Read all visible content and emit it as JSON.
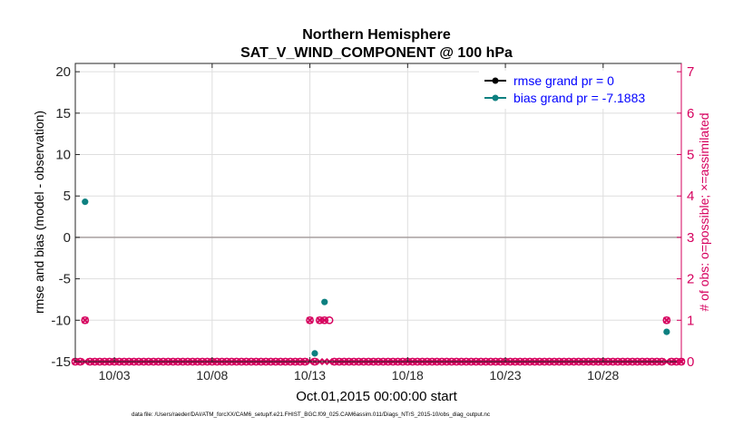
{
  "chart_data": {
    "type": "scatter",
    "title": "Northern Hemisphere",
    "subtitle": "SAT_V_WIND_COMPONENT @ 100 hPa",
    "xlabel": "Oct.01,2015 00:00:00 start",
    "ylabel_left": "rmse and bias (model - observation)",
    "ylabel_right": "# of obs: o=possible; ×=assimilated",
    "footnote": "data file: /Users/raeder/DAI/ATM_forcXX/CAM6_setup/f.e21.FHIST_BGC.f09_025.CAM6assim.011/Diags_NTrS_2015-10/obs_diag_output.nc",
    "xlim": [
      1.0,
      32.0
    ],
    "ylim_left": [
      -15,
      21
    ],
    "ylim_right": [
      0,
      7.2
    ],
    "left_ticks": [
      -15,
      -10,
      -5,
      0,
      5,
      10,
      15,
      20
    ],
    "right_ticks": [
      0,
      1,
      2,
      3,
      4,
      5,
      6,
      7
    ],
    "x_ticks": [
      {
        "x": 3,
        "label": "10/03"
      },
      {
        "x": 8,
        "label": "10/08"
      },
      {
        "x": 13,
        "label": "10/13"
      },
      {
        "x": 18,
        "label": "10/18"
      },
      {
        "x": 23,
        "label": "10/23"
      },
      {
        "x": 28,
        "label": "10/28"
      }
    ],
    "zero_line": 0,
    "legend_position": "top-right",
    "series": [
      {
        "name": "rmse grand pr = 0",
        "color": "#000000",
        "points": []
      },
      {
        "name": "bias grand pr = -7.1883",
        "color": "#0d8080",
        "points": [
          [
            1.5,
            4.3
          ],
          [
            13.25,
            -14.0
          ],
          [
            13.75,
            -7.8
          ],
          [
            31.25,
            -11.4
          ]
        ]
      }
    ],
    "obs_count": {
      "color": "#d6005e",
      "possible": [
        [
          1.5,
          1
        ],
        [
          13.0,
          1
        ],
        [
          13.5,
          1
        ],
        [
          13.75,
          1
        ],
        [
          14.0,
          1
        ],
        [
          31.25,
          1
        ]
      ],
      "assimilated": [
        [
          1.5,
          1
        ],
        [
          13.0,
          1
        ],
        [
          13.5,
          1
        ],
        [
          13.75,
          1
        ],
        [
          31.25,
          1
        ]
      ],
      "zero_start": 1.0,
      "zero_end": 32.0,
      "zero_step": 0.25
    }
  }
}
